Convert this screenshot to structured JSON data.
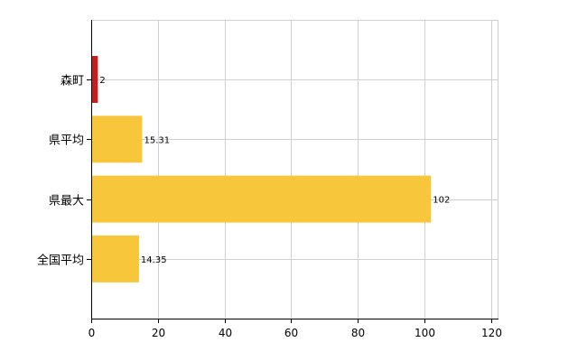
{
  "chart_data": {
    "type": "bar",
    "orientation": "horizontal",
    "categories": [
      "森町",
      "県平均",
      "県最大",
      "全国平均"
    ],
    "values": [
      2,
      15.31,
      102,
      14.35
    ],
    "value_labels": [
      "2",
      "15.31",
      "102",
      "14.35"
    ],
    "bar_colors": [
      "#c0201f",
      "#f8c63a",
      "#f8c63a",
      "#f8c63a"
    ],
    "xlim": [
      0,
      122
    ],
    "xticks": [
      0,
      20,
      40,
      60,
      80,
      100,
      120
    ],
    "xtick_labels": [
      "0",
      "20",
      "40",
      "60",
      "80",
      "100",
      "120"
    ],
    "grid": true,
    "legend": "none",
    "title": "",
    "xlabel": "",
    "ylabel": ""
  },
  "colors": {
    "highlight": "#c0201f",
    "bar": "#f8c63a",
    "grid": "#d0d0d0",
    "axis": "#000000"
  }
}
